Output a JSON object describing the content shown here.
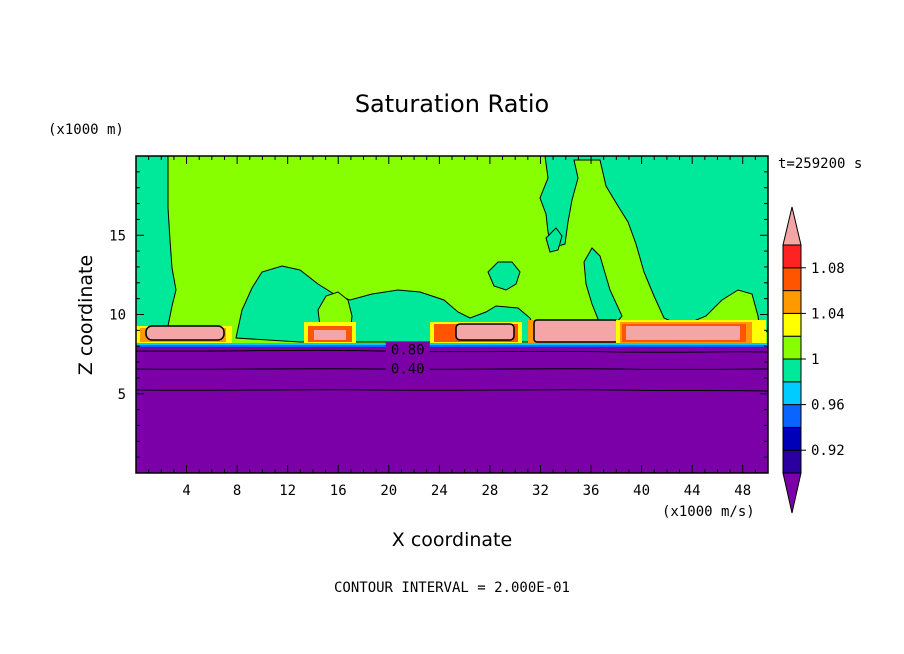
{
  "chart_data": {
    "type": "contour",
    "title": "Saturation Ratio",
    "xlabel": "X coordinate",
    "ylabel": "Z coordinate",
    "x_unit": "(x1000 m/s)",
    "y_unit": "(x1000 m)",
    "time_label": "t=259200 s",
    "footer": "CONTOUR INTERVAL = 2.000E-01",
    "xlim": [
      0,
      50
    ],
    "ylim": [
      0,
      20
    ],
    "x_ticks": [
      {
        "v": 4,
        "label": "4"
      },
      {
        "v": 8,
        "label": "8"
      },
      {
        "v": 12,
        "label": "12"
      },
      {
        "v": 16,
        "label": "16"
      },
      {
        "v": 20,
        "label": "20"
      },
      {
        "v": 24,
        "label": "24"
      },
      {
        "v": 28,
        "label": "28"
      },
      {
        "v": 32,
        "label": "32"
      },
      {
        "v": 36,
        "label": "36"
      },
      {
        "v": 40,
        "label": "40"
      },
      {
        "v": 44,
        "label": "44"
      },
      {
        "v": 48,
        "label": "48"
      }
    ],
    "y_ticks": [
      {
        "v": 5,
        "label": "5"
      },
      {
        "v": 10,
        "label": "10"
      },
      {
        "v": 15,
        "label": "15"
      }
    ],
    "colorbar": {
      "colors": [
        "#7b00a8",
        "#2a00a0",
        "#0000b8",
        "#0a64ff",
        "#00ccff",
        "#00e89a",
        "#88ff00",
        "#ffff00",
        "#ff9900",
        "#ff5500",
        "#ff2222",
        "#f4a6a6"
      ],
      "boundaries": [
        0.9,
        0.92,
        0.94,
        0.96,
        0.98,
        1.0,
        1.02,
        1.04,
        1.06,
        1.08,
        1.1
      ],
      "tick_labels": [
        {
          "v": 0.92,
          "label": "0.92"
        },
        {
          "v": 0.96,
          "label": "0.96"
        },
        {
          "v": 1.0,
          "label": "1"
        },
        {
          "v": 1.04,
          "label": "1.04"
        },
        {
          "v": 1.08,
          "label": "1.08"
        }
      ]
    },
    "contour_labels": [
      {
        "text": "0.80",
        "x": 21.5,
        "z": 7.8
      },
      {
        "text": "0.40",
        "x": 21.5,
        "z": 6.6
      }
    ]
  }
}
